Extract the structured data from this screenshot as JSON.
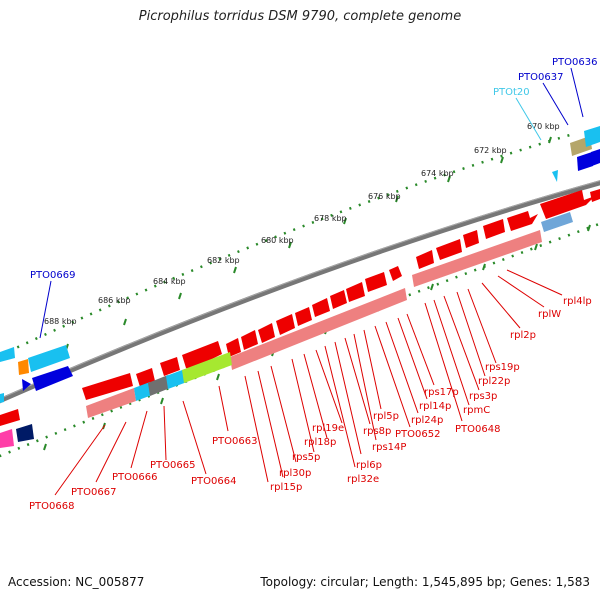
{
  "title": "Picrophilus torridus DSM 9790, complete genome",
  "footer": {
    "accession": "Accession: NC_005877",
    "topology": "Topology: circular; Length: 1,545,895 bp; Genes: 1,583"
  },
  "colors": {
    "backbone": "#777777",
    "dots": "#2a8a2a",
    "gene_forward": "#ee0000",
    "gene_reverse": "#0000dd",
    "rna_cyan": "#19c0f0",
    "rna_label": "#40c8e8",
    "rRNA_stripe": "#ee8080",
    "green_gene": "#a6e830",
    "gray_gene": "#707070",
    "olive_gene": "#b5a66a",
    "label_red": "#dd0000",
    "label_blue": "#0000cc",
    "label_cyan": "#40c8e8"
  },
  "kbp_ticks": [
    {
      "id": "670",
      "text": "670 kbp"
    },
    {
      "id": "672",
      "text": "672 kbp"
    },
    {
      "id": "674",
      "text": "674 kbp"
    },
    {
      "id": "676",
      "text": "676 kbp"
    },
    {
      "id": "678",
      "text": "678 kbp"
    },
    {
      "id": "680",
      "text": "680 kbp"
    },
    {
      "id": "682",
      "text": "682 kbp"
    },
    {
      "id": "684",
      "text": "684 kbp"
    },
    {
      "id": "686",
      "text": "686 kbp"
    },
    {
      "id": "688",
      "text": "688 kbp"
    }
  ],
  "gene_labels_top": [
    {
      "id": "PTO0636",
      "text": "PTO0636",
      "color": "blue"
    },
    {
      "id": "PTO0637",
      "text": "PTO0637",
      "color": "blue"
    },
    {
      "id": "PTOt20",
      "text": "PTOt20",
      "color": "cyan"
    },
    {
      "id": "PTO0669",
      "text": "PTO0669",
      "color": "blue"
    }
  ],
  "gene_labels_bottom": [
    {
      "id": "rpl4lp",
      "text": "rpl4lp"
    },
    {
      "id": "rplW",
      "text": "rplW"
    },
    {
      "id": "rpl2p",
      "text": "rpl2p"
    },
    {
      "id": "rps19p",
      "text": "rps19p"
    },
    {
      "id": "rpl22p",
      "text": "rpl22p"
    },
    {
      "id": "rps3p",
      "text": "rps3p"
    },
    {
      "id": "rpmC",
      "text": "rpmC"
    },
    {
      "id": "PTO0648",
      "text": "PTO0648"
    },
    {
      "id": "rps17p",
      "text": "rps17p"
    },
    {
      "id": "rpl14p",
      "text": "rpl14p"
    },
    {
      "id": "rpl24p",
      "text": "rpl24p"
    },
    {
      "id": "PTO0652",
      "text": "PTO0652"
    },
    {
      "id": "rpl5p",
      "text": "rpl5p"
    },
    {
      "id": "rps14P",
      "text": "rps14P"
    },
    {
      "id": "rps8p",
      "text": "rps8p"
    },
    {
      "id": "rpl6p",
      "text": "rpl6p"
    },
    {
      "id": "rpl32e",
      "text": "rpl32e"
    },
    {
      "id": "rpl19e",
      "text": "rpl19e"
    },
    {
      "id": "rpl18p",
      "text": "rpl18p"
    },
    {
      "id": "rps5p",
      "text": "rps5p"
    },
    {
      "id": "rpl30p",
      "text": "rpl30p"
    },
    {
      "id": "rpl15p",
      "text": "rpl15p"
    },
    {
      "id": "PTO0663",
      "text": "PTO0663"
    },
    {
      "id": "PTO0664",
      "text": "PTO0664"
    },
    {
      "id": "PTO0665",
      "text": "PTO0665"
    },
    {
      "id": "PTO0666",
      "text": "PTO0666"
    },
    {
      "id": "PTO0667",
      "text": "PTO0667"
    },
    {
      "id": "PTO0668",
      "text": "PTO0668"
    }
  ]
}
